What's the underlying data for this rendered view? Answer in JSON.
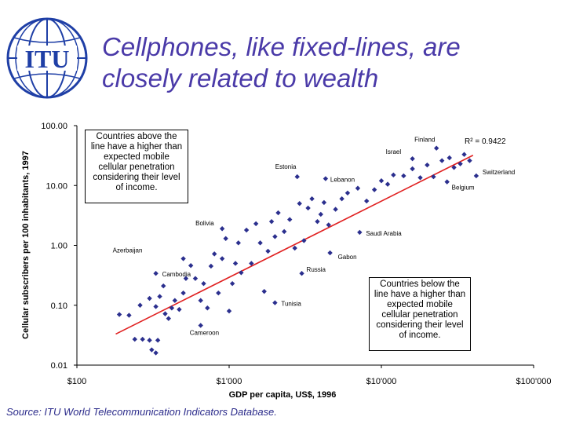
{
  "logo": {
    "text": "ITU"
  },
  "title_line1": "Cellphones, like fixed-lines, are",
  "title_line2": "closely related to wealth",
  "source": "Source:  ITU World Telecommunication Indicators Database.",
  "colors": {
    "title": "#4a3aa8",
    "points": "#2b2f8e",
    "trend": "#e02020",
    "logo": "#1f3fa6"
  },
  "annotations": {
    "above": [
      "Countries above the",
      "line have a higher than",
      "expected mobile",
      "cellular penetration",
      "considering their level",
      "of income."
    ],
    "below": [
      "Countries below the",
      "line have a higher than",
      "expected mobile",
      "cellular penetration",
      "considering their level",
      "of income."
    ]
  },
  "chart_data": {
    "type": "scatter",
    "xlabel": "GDP per capita, US$, 1996",
    "ylabel": "Cellular subscribers per 100 inhabitants, 1997",
    "x_scale": "log",
    "y_scale": "log",
    "xlim": [
      100,
      100000
    ],
    "ylim": [
      0.01,
      100
    ],
    "x_ticks": [
      100,
      1000,
      10000,
      100000
    ],
    "x_tick_labels": [
      "$100",
      "$1'000",
      "$10'000",
      "$100'000"
    ],
    "y_ticks": [
      0.01,
      0.1,
      1,
      10,
      100
    ],
    "y_tick_labels": [
      "0.01",
      "0.10",
      "1.00",
      "10.00",
      "100.00"
    ],
    "grid": false,
    "r_squared_label": "R² = 0.9422",
    "trendline": {
      "x": [
        180,
        40000
      ],
      "y": [
        0.033,
        32
      ]
    },
    "labeled_points": [
      {
        "name": "Finland",
        "x": 23000,
        "y": 42
      },
      {
        "name": "Israel",
        "x": 16000,
        "y": 28
      },
      {
        "name": "Switzerland",
        "x": 42000,
        "y": 14.5
      },
      {
        "name": "Belgium",
        "x": 27000,
        "y": 11.5
      },
      {
        "name": "Estonia",
        "x": 2800,
        "y": 14
      },
      {
        "name": "Lebanon",
        "x": 4300,
        "y": 13
      },
      {
        "name": "Bolivia",
        "x": 900,
        "y": 1.9
      },
      {
        "name": "Saudi Arabia",
        "x": 7200,
        "y": 1.65
      },
      {
        "name": "Gabon",
        "x": 4600,
        "y": 0.75
      },
      {
        "name": "Azerbaijan",
        "x": 500,
        "y": 0.6
      },
      {
        "name": "Cambodia",
        "x": 330,
        "y": 0.34
      },
      {
        "name": "Russia",
        "x": 3000,
        "y": 0.34
      },
      {
        "name": "Tunisia",
        "x": 2000,
        "y": 0.11
      },
      {
        "name": "Cameroon",
        "x": 650,
        "y": 0.046
      }
    ],
    "points": [
      {
        "x": 190,
        "y": 0.07
      },
      {
        "x": 220,
        "y": 0.068
      },
      {
        "x": 240,
        "y": 0.027
      },
      {
        "x": 270,
        "y": 0.027
      },
      {
        "x": 300,
        "y": 0.026
      },
      {
        "x": 310,
        "y": 0.018
      },
      {
        "x": 330,
        "y": 0.016
      },
      {
        "x": 340,
        "y": 0.026
      },
      {
        "x": 260,
        "y": 0.1
      },
      {
        "x": 300,
        "y": 0.13
      },
      {
        "x": 330,
        "y": 0.095
      },
      {
        "x": 350,
        "y": 0.14
      },
      {
        "x": 370,
        "y": 0.21
      },
      {
        "x": 380,
        "y": 0.072
      },
      {
        "x": 400,
        "y": 0.06
      },
      {
        "x": 420,
        "y": 0.09
      },
      {
        "x": 440,
        "y": 0.12
      },
      {
        "x": 470,
        "y": 0.085
      },
      {
        "x": 500,
        "y": 0.16
      },
      {
        "x": 520,
        "y": 0.28
      },
      {
        "x": 560,
        "y": 0.46
      },
      {
        "x": 600,
        "y": 0.28
      },
      {
        "x": 650,
        "y": 0.12
      },
      {
        "x": 680,
        "y": 0.23
      },
      {
        "x": 720,
        "y": 0.09
      },
      {
        "x": 760,
        "y": 0.45
      },
      {
        "x": 800,
        "y": 0.72
      },
      {
        "x": 850,
        "y": 0.16
      },
      {
        "x": 900,
        "y": 0.6
      },
      {
        "x": 950,
        "y": 1.3
      },
      {
        "x": 1000,
        "y": 0.08
      },
      {
        "x": 1050,
        "y": 0.23
      },
      {
        "x": 1100,
        "y": 0.5
      },
      {
        "x": 1150,
        "y": 1.1
      },
      {
        "x": 1200,
        "y": 0.35
      },
      {
        "x": 1300,
        "y": 1.8
      },
      {
        "x": 1400,
        "y": 0.5
      },
      {
        "x": 1500,
        "y": 2.3
      },
      {
        "x": 1600,
        "y": 1.1
      },
      {
        "x": 1700,
        "y": 0.17
      },
      {
        "x": 1800,
        "y": 0.8
      },
      {
        "x": 1900,
        "y": 2.5
      },
      {
        "x": 2000,
        "y": 1.4
      },
      {
        "x": 2100,
        "y": 3.5
      },
      {
        "x": 2300,
        "y": 1.7
      },
      {
        "x": 2500,
        "y": 2.7
      },
      {
        "x": 2700,
        "y": 0.9
      },
      {
        "x": 2900,
        "y": 5
      },
      {
        "x": 3100,
        "y": 1.2
      },
      {
        "x": 3300,
        "y": 4.2
      },
      {
        "x": 3500,
        "y": 6
      },
      {
        "x": 3800,
        "y": 2.5
      },
      {
        "x": 4000,
        "y": 3.3
      },
      {
        "x": 4200,
        "y": 5.2
      },
      {
        "x": 4500,
        "y": 2.2
      },
      {
        "x": 5000,
        "y": 4
      },
      {
        "x": 5500,
        "y": 6
      },
      {
        "x": 6000,
        "y": 7.5
      },
      {
        "x": 7000,
        "y": 9
      },
      {
        "x": 8000,
        "y": 5.5
      },
      {
        "x": 9000,
        "y": 8.5
      },
      {
        "x": 10000,
        "y": 12
      },
      {
        "x": 11000,
        "y": 10.5
      },
      {
        "x": 12000,
        "y": 15
      },
      {
        "x": 14000,
        "y": 14.5
      },
      {
        "x": 16000,
        "y": 19
      },
      {
        "x": 18000,
        "y": 13.5
      },
      {
        "x": 20000,
        "y": 22
      },
      {
        "x": 22000,
        "y": 14
      },
      {
        "x": 25000,
        "y": 26
      },
      {
        "x": 28000,
        "y": 29
      },
      {
        "x": 30000,
        "y": 20
      },
      {
        "x": 33000,
        "y": 23
      },
      {
        "x": 35000,
        "y": 33
      },
      {
        "x": 38000,
        "y": 26
      }
    ]
  }
}
